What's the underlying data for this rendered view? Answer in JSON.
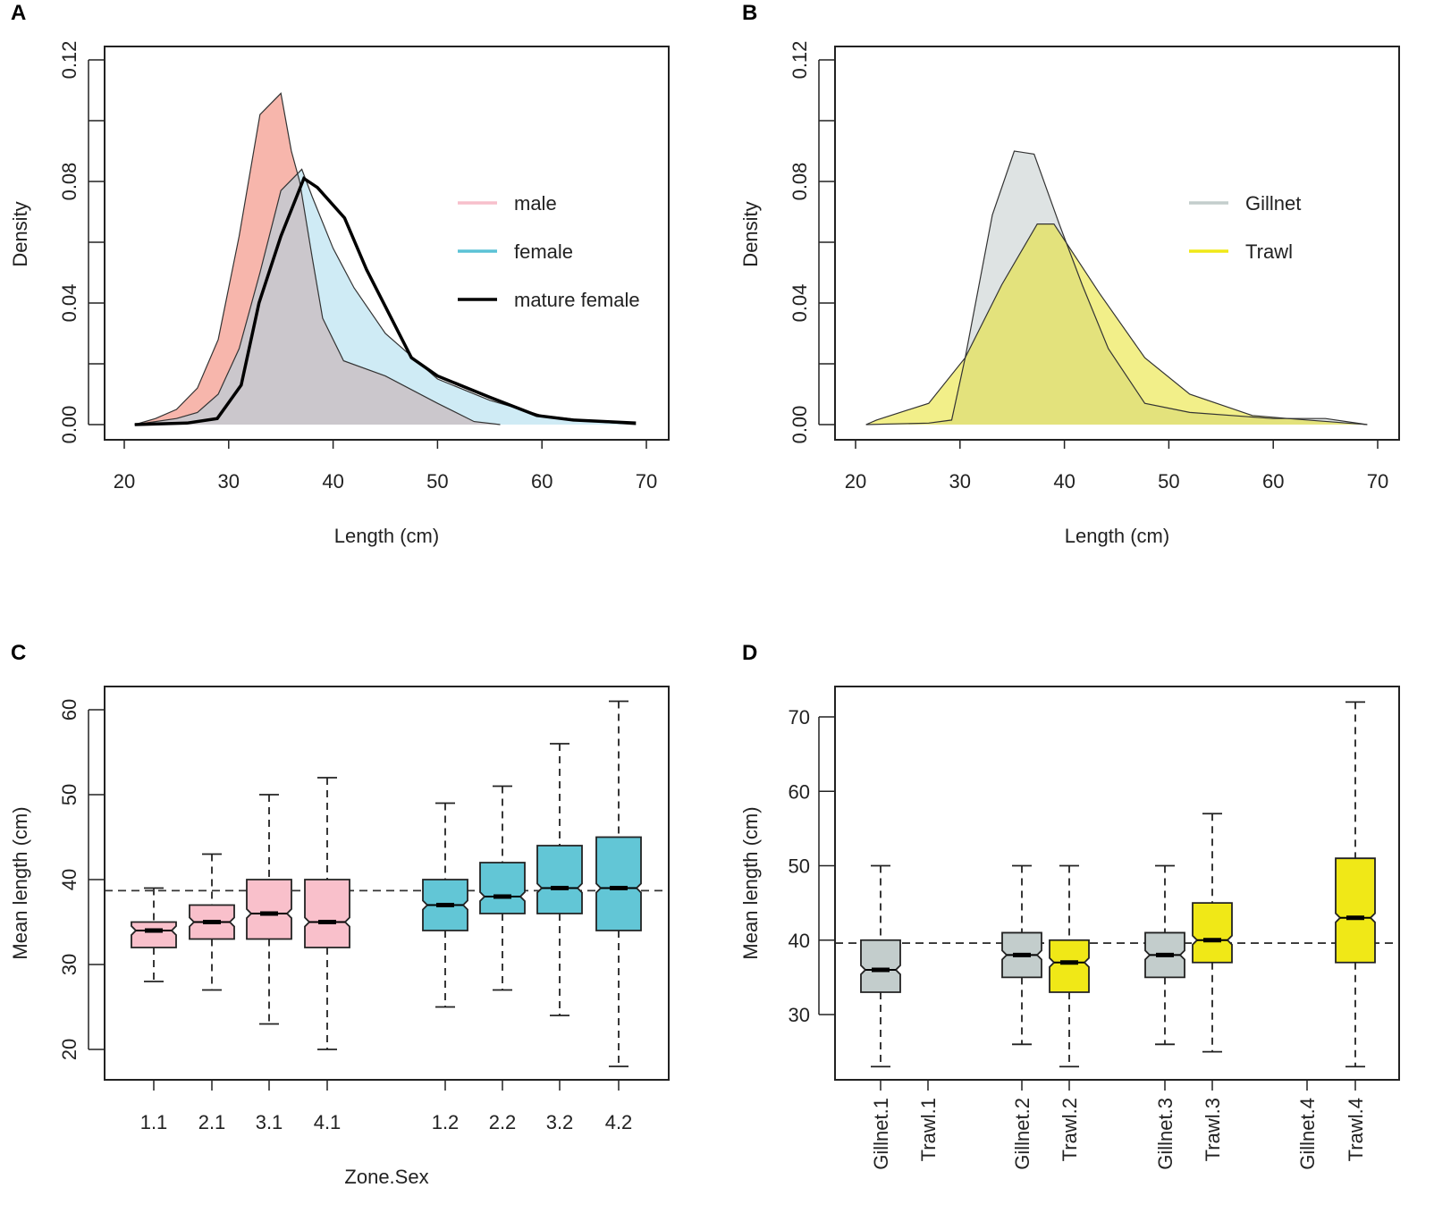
{
  "chart_data": [
    {
      "panel": "A",
      "type": "area",
      "xlabel": "Length (cm)",
      "ylabel": "Density",
      "xlim": [
        20,
        70
      ],
      "ylim": [
        0,
        0.12
      ],
      "xticks": [
        "20",
        "30",
        "40",
        "50",
        "60",
        "70"
      ],
      "yticks": [
        "0.00",
        "0.04",
        "0.08",
        "0.12"
      ],
      "legend": "right",
      "series": [
        {
          "name": "male",
          "color": "#f7bfcb",
          "fill": "rgba(240,110,90,0.5)",
          "points": [
            [
              21,
              0
            ],
            [
              23,
              0.002
            ],
            [
              25,
              0.005
            ],
            [
              27,
              0.012
            ],
            [
              29,
              0.028
            ],
            [
              31,
              0.062
            ],
            [
              33,
              0.102
            ],
            [
              35,
              0.109
            ],
            [
              36,
              0.09
            ],
            [
              36.8,
              0.08
            ],
            [
              38,
              0.055
            ],
            [
              39,
              0.035
            ],
            [
              41,
              0.021
            ],
            [
              45,
              0.016
            ],
            [
              50,
              0.007
            ],
            [
              53.5,
              0.001
            ],
            [
              56,
              0
            ]
          ]
        },
        {
          "name": "female",
          "color": "#5bc2d6",
          "fill": "rgba(160,215,235,0.5)",
          "points": [
            [
              21,
              0
            ],
            [
              25,
              0.002
            ],
            [
              27,
              0.004
            ],
            [
              29,
              0.01
            ],
            [
              31,
              0.025
            ],
            [
              33,
              0.05
            ],
            [
              35,
              0.077
            ],
            [
              37,
              0.084
            ],
            [
              38,
              0.075
            ],
            [
              40,
              0.058
            ],
            [
              42,
              0.045
            ],
            [
              45,
              0.03
            ],
            [
              48,
              0.021
            ],
            [
              50,
              0.015
            ],
            [
              55,
              0.008
            ],
            [
              60,
              0.003
            ],
            [
              65,
              0.001
            ],
            [
              69,
              0
            ]
          ]
        },
        {
          "name": "mature female",
          "color": "#000000",
          "fill": "none",
          "points": [
            [
              21,
              0
            ],
            [
              26,
              0.0005
            ],
            [
              28.9,
              0.002
            ],
            [
              31.2,
              0.013
            ],
            [
              32.9,
              0.04
            ],
            [
              35,
              0.062
            ],
            [
              37.2,
              0.081
            ],
            [
              38.5,
              0.078
            ],
            [
              41.1,
              0.068
            ],
            [
              43.2,
              0.051
            ],
            [
              47.5,
              0.022
            ],
            [
              50,
              0.016
            ],
            [
              55,
              0.009
            ],
            [
              59.5,
              0.003
            ],
            [
              63,
              0.0015
            ],
            [
              69,
              0.0005
            ]
          ]
        }
      ]
    },
    {
      "panel": "B",
      "type": "area",
      "xlabel": "Length (cm)",
      "ylabel": "Density",
      "xlim": [
        20,
        70
      ],
      "ylim": [
        0,
        0.12
      ],
      "xticks": [
        "20",
        "30",
        "40",
        "50",
        "60",
        "70"
      ],
      "yticks": [
        "0.00",
        "0.04",
        "0.08",
        "0.12"
      ],
      "legend": "right",
      "series": [
        {
          "name": "Gillnet",
          "color": "#c3cdcc",
          "fill": "rgba(190,200,200,0.5)",
          "points": [
            [
              21,
              0
            ],
            [
              27,
              0.0005
            ],
            [
              29.2,
              0.0015
            ],
            [
              30.5,
              0.022
            ],
            [
              33.1,
              0.069
            ],
            [
              35.2,
              0.09
            ],
            [
              37.1,
              0.089
            ],
            [
              39.5,
              0.066
            ],
            [
              41.7,
              0.046
            ],
            [
              44.2,
              0.025
            ],
            [
              47.7,
              0.007
            ],
            [
              52,
              0.004
            ],
            [
              60,
              0.002
            ],
            [
              65,
              0.002
            ],
            [
              69,
              0
            ]
          ]
        },
        {
          "name": "Trawl",
          "color": "#f0e817",
          "fill": "rgba(232,225,40,0.55)",
          "points": [
            [
              21,
              0
            ],
            [
              22,
              0.0015
            ],
            [
              27,
              0.007
            ],
            [
              30.5,
              0.022
            ],
            [
              34,
              0.046
            ],
            [
              37.4,
              0.066
            ],
            [
              39,
              0.066
            ],
            [
              43.4,
              0.043
            ],
            [
              47.7,
              0.022
            ],
            [
              52,
              0.01
            ],
            [
              58,
              0.003
            ],
            [
              61.4,
              0.002
            ],
            [
              69,
              0
            ]
          ]
        }
      ]
    },
    {
      "panel": "C",
      "type": "box",
      "xlabel": "Zone.Sex",
      "ylabel": "Mean length (cm)",
      "ylim": [
        18,
        64
      ],
      "yticks": [
        "20",
        "30",
        "40",
        "50",
        "60"
      ],
      "reference_line": 38.7,
      "categories": [
        "1.1",
        "2.1",
        "3.1",
        "4.1",
        "1.2",
        "2.2",
        "3.2",
        "4.2"
      ],
      "colors": [
        "#f9c0cb",
        "#f9c0cb",
        "#f9c0cb",
        "#f9c0cb",
        "#62c6d6",
        "#62c6d6",
        "#62c6d6",
        "#62c6d6"
      ],
      "boxes": [
        [
          28,
          32,
          34,
          35,
          39
        ],
        [
          27,
          33,
          35,
          37,
          43
        ],
        [
          23,
          33,
          36,
          40,
          50
        ],
        [
          20,
          32,
          35,
          40,
          52
        ],
        [
          25,
          34,
          37,
          40,
          49
        ],
        [
          27,
          36,
          38,
          42,
          51
        ],
        [
          24,
          36,
          39,
          44,
          56
        ],
        [
          18,
          34,
          39,
          45,
          61
        ]
      ]
    },
    {
      "panel": "D",
      "type": "box",
      "xlabel": "",
      "ylabel": "Mean length (cm)",
      "ylim": [
        21,
        74
      ],
      "yticks": [
        "30",
        "40",
        "50",
        "60",
        "70"
      ],
      "reference_line": 39.6,
      "categories": [
        "Gillnet.1",
        "Trawl.1",
        "Gillnet.2",
        "Trawl.2",
        "Gillnet.3",
        "Trawl.3",
        "Gillnet.4",
        "Trawl.4"
      ],
      "colors": [
        "#c3cdcc",
        "#f0e817",
        "#c3cdcc",
        "#f0e817",
        "#c3cdcc",
        "#f0e817",
        "#c3cdcc",
        "#f0e817"
      ],
      "boxes": [
        [
          23,
          33,
          36,
          40,
          50
        ],
        null,
        [
          26,
          35,
          38,
          41,
          50
        ],
        [
          23,
          33,
          37,
          40,
          50
        ],
        [
          26,
          35,
          38,
          41,
          50
        ],
        [
          25,
          37,
          40,
          45,
          57
        ],
        null,
        [
          23,
          37,
          43,
          51,
          72
        ]
      ]
    }
  ]
}
